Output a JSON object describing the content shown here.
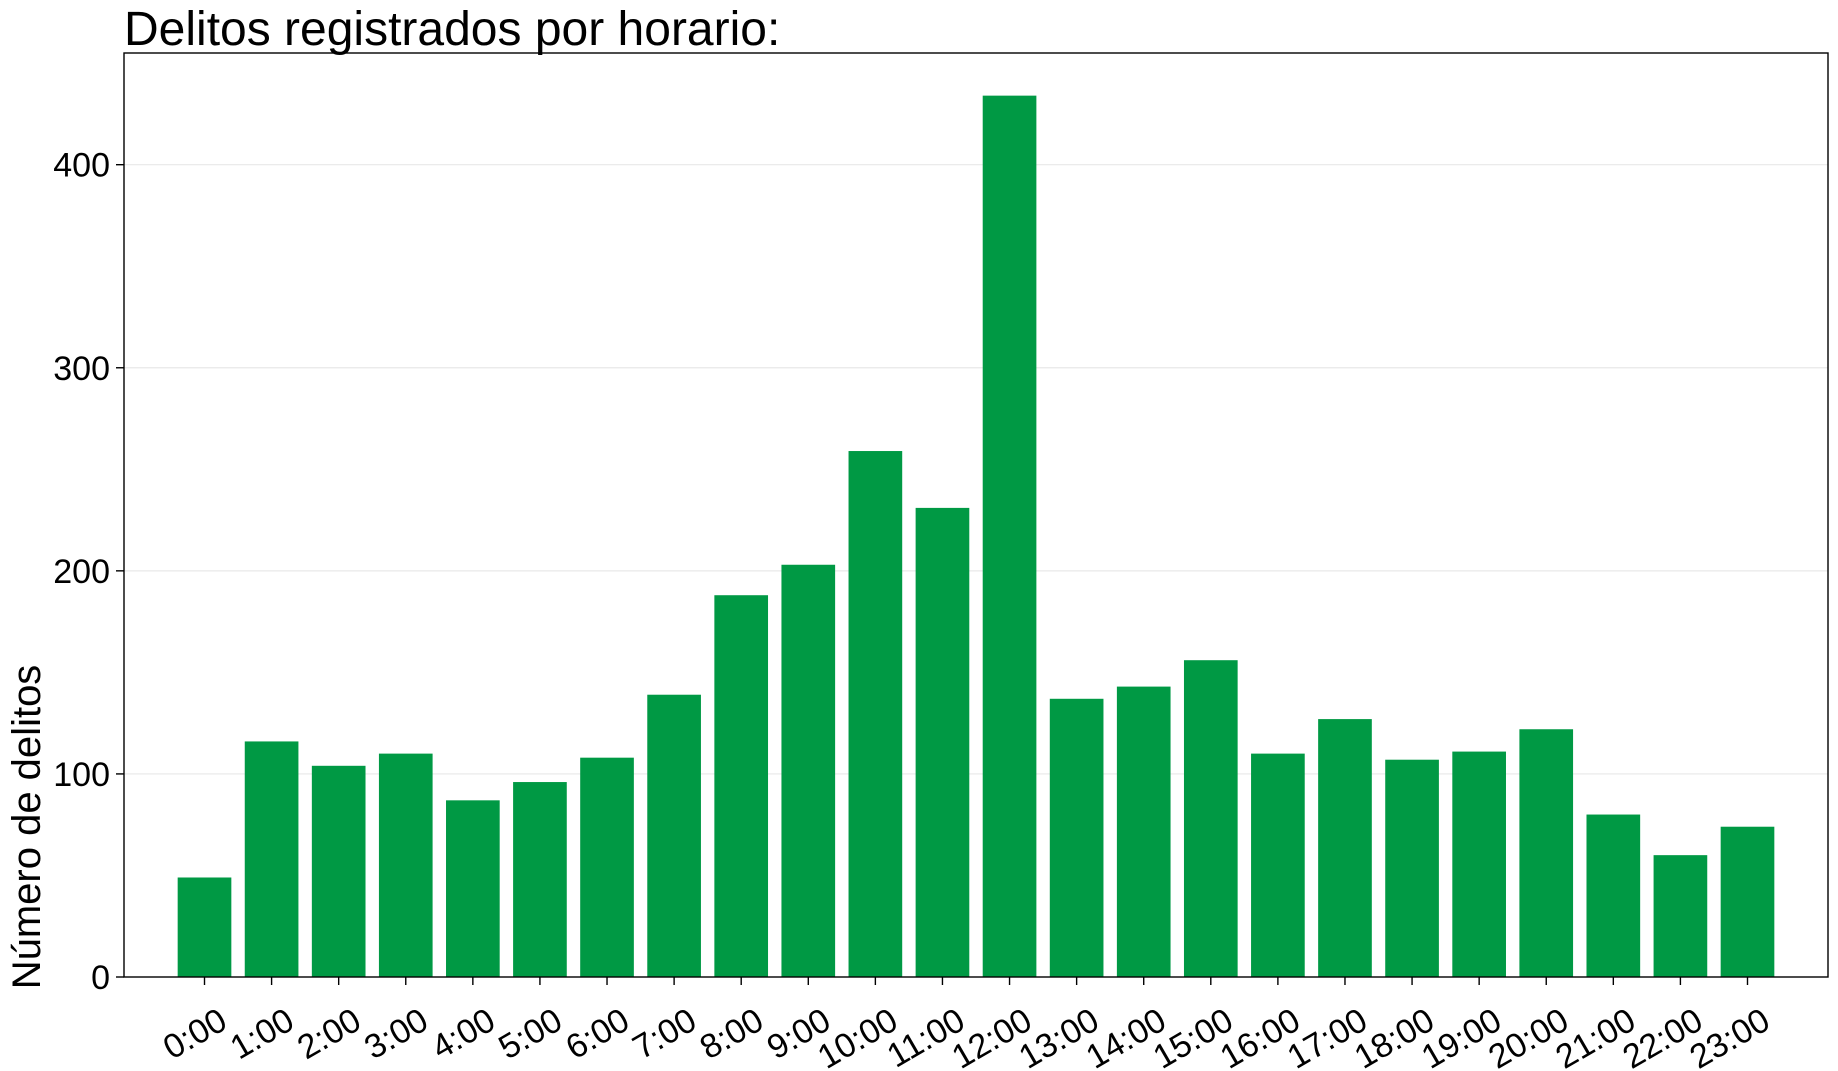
{
  "chart_data": {
    "type": "bar",
    "title": "Delitos registrados por horario:",
    "xlabel": "",
    "ylabel": "Número de delitos",
    "categories": [
      "0:00",
      "1:00",
      "2:00",
      "3:00",
      "4:00",
      "5:00",
      "6:00",
      "7:00",
      "8:00",
      "9:00",
      "10:00",
      "11:00",
      "12:00",
      "13:00",
      "14:00",
      "15:00",
      "16:00",
      "17:00",
      "18:00",
      "19:00",
      "20:00",
      "21:00",
      "22:00",
      "23:00"
    ],
    "values": [
      49,
      116,
      104,
      110,
      87,
      96,
      108,
      139,
      188,
      203,
      259,
      231,
      434,
      137,
      143,
      156,
      110,
      127,
      107,
      111,
      122,
      80,
      60,
      74
    ],
    "ylim": [
      0,
      455
    ],
    "yticks": [
      0,
      100,
      200,
      300,
      400
    ],
    "grid": "horizontal",
    "legend": "none",
    "bar_color": "#009944"
  }
}
